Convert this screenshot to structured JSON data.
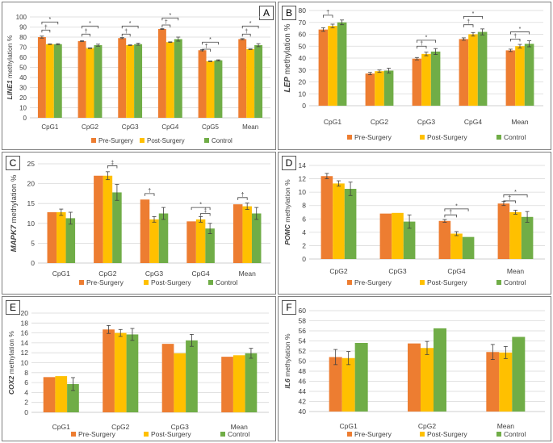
{
  "colors": {
    "pre": "#ED7D31",
    "post": "#FFC000",
    "control": "#70AD47",
    "grid": "#d9d9d9",
    "axis": "#bfbfbf"
  },
  "legend_labels": [
    "Pre-Surgery",
    "Post-Surgery",
    "Control"
  ],
  "chart_data": [
    {
      "panel": "A",
      "type": "bar",
      "ylabel_gene": "LINE1",
      "ylabel_rest": " methylation %",
      "ylim": [
        0,
        100
      ],
      "yticks": [
        0,
        10,
        20,
        30,
        40,
        50,
        60,
        70,
        80,
        90,
        100
      ],
      "categories": [
        "CpG1",
        "CpG2",
        "CpG3",
        "CpG4",
        "CpG5",
        "Mean"
      ],
      "series": [
        {
          "name": "Pre-Surgery",
          "values": [
            80,
            76,
            79,
            88,
            67,
            78
          ],
          "errors": [
            1,
            0.5,
            0.5,
            0.5,
            0.5,
            0.5
          ]
        },
        {
          "name": "Post-Surgery",
          "values": [
            73,
            69,
            72,
            75,
            56,
            68
          ],
          "errors": [
            0.3,
            0.3,
            0.3,
            0.3,
            0.3,
            0.3
          ]
        },
        {
          "name": "Control",
          "values": [
            73,
            72,
            73,
            78,
            57,
            72
          ],
          "errors": [
            0.5,
            1,
            1,
            2,
            0.5,
            1.5
          ]
        }
      ],
      "annotations": [
        {
          "cat": 0,
          "from": 0,
          "to": 2,
          "level": 95,
          "label": "*"
        },
        {
          "cat": 0,
          "from": 0,
          "to": 1,
          "level": 87,
          "label": "†"
        },
        {
          "cat": 1,
          "from": 0,
          "to": 2,
          "level": 91,
          "label": "*"
        },
        {
          "cat": 1,
          "from": 0,
          "to": 1,
          "level": 83,
          "label": "†"
        },
        {
          "cat": 2,
          "from": 0,
          "to": 2,
          "level": 91,
          "label": "*"
        },
        {
          "cat": 2,
          "from": 0,
          "to": 1,
          "level": 83,
          "label": "†"
        },
        {
          "cat": 3,
          "from": 0,
          "to": 2,
          "level": 99,
          "label": "*"
        },
        {
          "cat": 3,
          "from": 0,
          "to": 1,
          "level": 92,
          "label": "†"
        },
        {
          "cat": 4,
          "from": 0,
          "to": 2,
          "level": 75,
          "label": "*"
        },
        {
          "cat": 4,
          "from": 0,
          "to": 1,
          "level": 68,
          "label": "†"
        },
        {
          "cat": 5,
          "from": 0,
          "to": 2,
          "level": 91,
          "label": "*"
        },
        {
          "cat": 5,
          "from": 0,
          "to": 1,
          "level": 83,
          "label": "†"
        }
      ]
    },
    {
      "panel": "B",
      "type": "bar",
      "ylabel_gene": "LEP",
      "ylabel_rest": " methylation %",
      "ylim": [
        0,
        80
      ],
      "yticks": [
        0,
        10,
        20,
        30,
        40,
        50,
        60,
        70,
        80
      ],
      "categories": [
        "CpG1",
        "CpG2",
        "CpG3",
        "CpG4",
        "Mean"
      ],
      "series": [
        {
          "name": "Pre-Surgery",
          "values": [
            64,
            27,
            39.5,
            56,
            46.5
          ],
          "errors": [
            1.5,
            1,
            1,
            1,
            1
          ]
        },
        {
          "name": "Post-Surgery",
          "values": [
            67,
            29,
            43.5,
            60,
            50
          ],
          "errors": [
            1.5,
            1,
            1.5,
            1.5,
            1.5
          ]
        },
        {
          "name": "Control",
          "values": [
            70,
            29.5,
            45.5,
            62,
            52
          ],
          "errors": [
            2,
            2,
            2.5,
            2.5,
            2.5
          ]
        }
      ],
      "annotations": [
        {
          "cat": 0,
          "from": 0,
          "to": 1,
          "level": 76,
          "label": "†"
        },
        {
          "cat": 2,
          "from": 0,
          "to": 2,
          "level": 55,
          "label": "*"
        },
        {
          "cat": 2,
          "from": 0,
          "to": 1,
          "level": 50,
          "label": "†"
        },
        {
          "cat": 3,
          "from": 0,
          "to": 2,
          "level": 75,
          "label": "*"
        },
        {
          "cat": 3,
          "from": 0,
          "to": 1,
          "level": 68,
          "label": "†"
        },
        {
          "cat": 4,
          "from": 0,
          "to": 2,
          "level": 62,
          "label": "*"
        },
        {
          "cat": 4,
          "from": 0,
          "to": 1,
          "level": 56,
          "label": "†"
        }
      ]
    },
    {
      "panel": "C",
      "type": "bar",
      "ylabel_gene": "MAPK7",
      "ylabel_rest": " methylation %",
      "ylim": [
        0,
        25
      ],
      "yticks": [
        0,
        5,
        10,
        15,
        20,
        25
      ],
      "categories": [
        "CpG1",
        "CpG2",
        "CpG3",
        "CpG4",
        "Mean"
      ],
      "series": [
        {
          "name": "Pre-Surgery",
          "values": [
            12.8,
            22,
            16,
            10.5,
            14.8
          ],
          "errors": [
            0,
            0,
            0,
            0,
            0
          ]
        },
        {
          "name": "Post-Surgery",
          "values": [
            12.8,
            22,
            11,
            11,
            14.3
          ],
          "errors": [
            0.8,
            1,
            0.7,
            0.7,
            0.8
          ]
        },
        {
          "name": "Control",
          "values": [
            11.3,
            17.8,
            12.5,
            8.7,
            12.5
          ],
          "errors": [
            1.5,
            2,
            1.5,
            1.3,
            1.5
          ]
        }
      ],
      "annotations": [
        {
          "cat": 1,
          "from": 1,
          "to": 2,
          "level": 24.5,
          "label": "‡"
        },
        {
          "cat": 2,
          "from": 0,
          "to": 1,
          "level": 17.5,
          "label": "†"
        },
        {
          "cat": 3,
          "from": 0,
          "to": 2,
          "level": 14,
          "label": "*"
        },
        {
          "cat": 3,
          "from": 1,
          "to": 2,
          "level": 12.5,
          "label": "‡"
        },
        {
          "cat": 4,
          "from": 0,
          "to": 1,
          "level": 16.5,
          "label": "†"
        }
      ]
    },
    {
      "panel": "D",
      "type": "bar",
      "ylabel_gene": "POMC",
      "ylabel_rest": " methylation %",
      "ylim": [
        0,
        14
      ],
      "yticks": [
        0,
        2,
        4,
        6,
        8,
        10,
        12,
        14
      ],
      "categories": [
        "CpG2",
        "CpG3",
        "CpG4",
        "Mean"
      ],
      "series": [
        {
          "name": "Pre-Surgery",
          "values": [
            12.4,
            6.8,
            5.7,
            8.3
          ],
          "errors": [
            0.4,
            0,
            0.2,
            0.3
          ]
        },
        {
          "name": "Post-Surgery",
          "values": [
            11.3,
            6.9,
            3.8,
            7
          ],
          "errors": [
            0.4,
            0,
            0.3,
            0.3
          ]
        },
        {
          "name": "Control",
          "values": [
            10.5,
            5.6,
            3.3,
            6.3
          ],
          "errors": [
            1,
            1,
            0,
            0.8
          ]
        }
      ],
      "annotations": [
        {
          "cat": 2,
          "from": 0,
          "to": 2,
          "level": 7.5,
          "label": "*"
        },
        {
          "cat": 2,
          "from": 0,
          "to": 1,
          "level": 6.6,
          "label": "†"
        },
        {
          "cat": 3,
          "from": 0,
          "to": 2,
          "level": 9.6,
          "label": "*"
        },
        {
          "cat": 3,
          "from": 0,
          "to": 1,
          "level": 8.7,
          "label": "†"
        }
      ]
    },
    {
      "panel": "E",
      "type": "bar",
      "ylabel_gene": "COX2",
      "ylabel_rest": " methylation %",
      "ylim": [
        0,
        20
      ],
      "yticks": [
        0,
        2,
        4,
        6,
        8,
        10,
        12,
        14,
        16,
        18,
        20
      ],
      "categories": [
        "CpG1",
        "CpG2",
        "CpG3",
        "Mean"
      ],
      "series": [
        {
          "name": "Pre-Surgery",
          "values": [
            7.1,
            16.7,
            13.8,
            11.2
          ],
          "errors": [
            0,
            0.8,
            0,
            0
          ]
        },
        {
          "name": "Post-Surgery",
          "values": [
            7.3,
            16,
            11.9,
            11.5
          ],
          "errors": [
            0,
            0.7,
            0,
            0
          ]
        },
        {
          "name": "Control",
          "values": [
            5.7,
            15.7,
            14.5,
            11.9
          ],
          "errors": [
            1.3,
            1.2,
            1.2,
            1
          ]
        }
      ],
      "annotations": []
    },
    {
      "panel": "F",
      "type": "bar",
      "ylabel_gene": "IL6",
      "ylabel_rest": " methylation %",
      "ylim": [
        40,
        60
      ],
      "yticks": [
        40,
        42,
        44,
        46,
        48,
        50,
        52,
        54,
        56,
        58,
        60
      ],
      "categories": [
        "CpG1",
        "CpG2",
        "Mean"
      ],
      "series": [
        {
          "name": "Pre-Surgery",
          "values": [
            50.8,
            53.5,
            51.8
          ],
          "errors": [
            1.5,
            0,
            1.5
          ]
        },
        {
          "name": "Post-Surgery",
          "values": [
            50.6,
            52.6,
            51.7
          ],
          "errors": [
            1.3,
            1.3,
            1.2
          ]
        },
        {
          "name": "Control",
          "values": [
            53.6,
            56.5,
            54.8
          ],
          "errors": [
            0,
            0,
            0
          ]
        }
      ],
      "annotations": []
    }
  ]
}
